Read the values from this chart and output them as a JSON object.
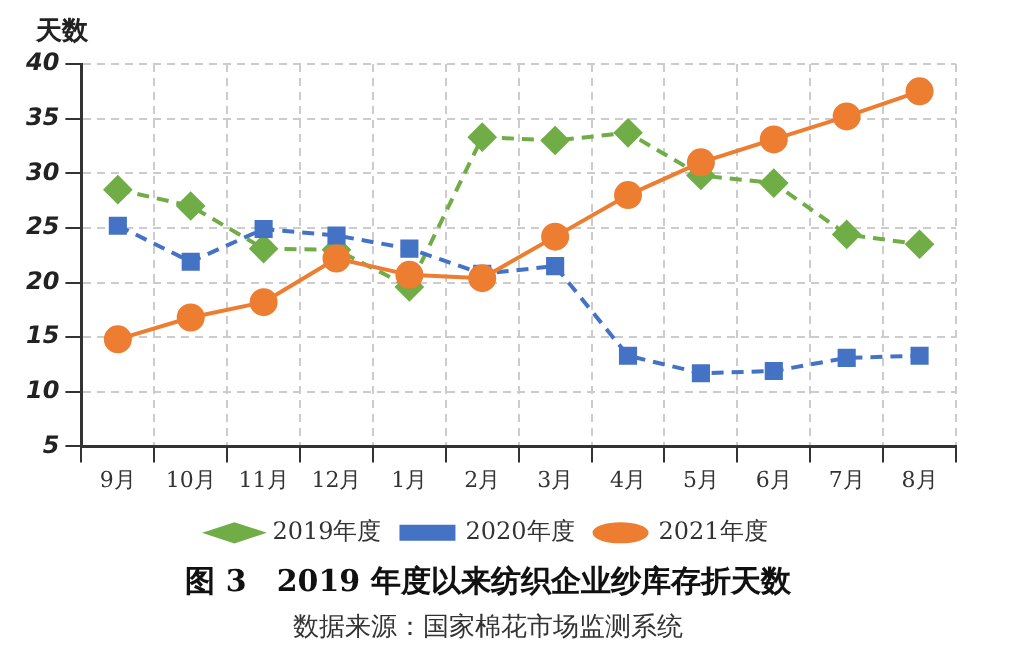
{
  "chart_data": {
    "type": "line",
    "title": "图 3　2019 年度以来纺织企业纱库存折天数",
    "ylabel": "天数",
    "annotations": [
      "数据来源：国家棉花市场监测系统"
    ],
    "categories": [
      "9月",
      "10月",
      "11月",
      "12月",
      "1月",
      "2月",
      "3月",
      "4月",
      "5月",
      "6月",
      "7月",
      "8月"
    ],
    "series": [
      {
        "name": "2019年度",
        "color": "#70ad47",
        "marker": "diamond",
        "line_style": "dashed",
        "values": [
          28.5,
          27.0,
          23.1,
          23.0,
          19.6,
          33.3,
          33.0,
          33.7,
          29.8,
          29.1,
          24.4,
          23.5
        ]
      },
      {
        "name": "2020年度",
        "color": "#4472c4",
        "marker": "square",
        "line_style": "dashed",
        "values": [
          25.2,
          21.9,
          24.9,
          24.3,
          23.1,
          20.8,
          21.5,
          13.3,
          11.7,
          11.9,
          13.1,
          13.3
        ]
      },
      {
        "name": "2021年度",
        "color": "#ed7d31",
        "marker": "circle",
        "line_style": "solid",
        "values": [
          14.8,
          16.8,
          18.2,
          22.2,
          20.7,
          20.4,
          24.2,
          28.0,
          31.0,
          33.1,
          35.2,
          37.5
        ]
      }
    ],
    "ylim": [
      5,
      40
    ],
    "yticks": [
      5,
      10,
      15,
      20,
      25,
      30,
      35,
      40
    ],
    "grid": true,
    "legend": "bottom"
  }
}
